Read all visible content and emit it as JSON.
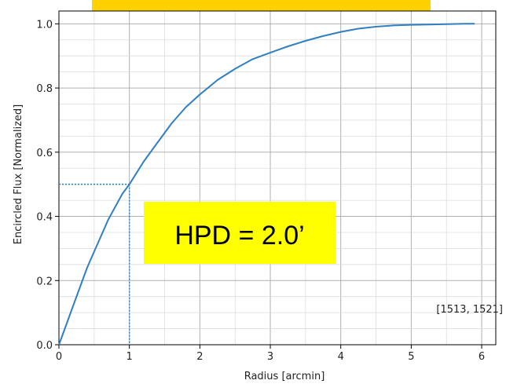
{
  "chart_data": {
    "type": "line",
    "title": "",
    "xlabel": "Radius [arcmin]",
    "ylabel": "Encircled Flux [Normalized]",
    "xlim": [
      0,
      6.2
    ],
    "ylim": [
      0,
      1.04
    ],
    "x_ticks": [
      0,
      1,
      2,
      3,
      4,
      5,
      6
    ],
    "x_tick_labels": [
      "0",
      "1",
      "2",
      "3",
      "4",
      "5",
      "6"
    ],
    "y_ticks": [
      0.0,
      0.2,
      0.4,
      0.6,
      0.8,
      1.0
    ],
    "y_tick_labels": [
      "0.0",
      "0.2",
      "0.4",
      "0.6",
      "0.8",
      "1.0"
    ],
    "grid": true,
    "series": [
      {
        "color": "#2f7fc1",
        "x": [
          0,
          0.1,
          0.2,
          0.3,
          0.4,
          0.5,
          0.6,
          0.7,
          0.8,
          0.9,
          1.0,
          1.2,
          1.4,
          1.6,
          1.8,
          2.0,
          2.25,
          2.5,
          2.75,
          3.0,
          3.25,
          3.5,
          3.75,
          4.0,
          4.25,
          4.5,
          4.75,
          5.0,
          5.25,
          5.5,
          5.75,
          5.9
        ],
        "y": [
          0.0,
          0.06,
          0.12,
          0.18,
          0.24,
          0.29,
          0.34,
          0.39,
          0.43,
          0.47,
          0.5,
          0.57,
          0.63,
          0.69,
          0.74,
          0.78,
          0.825,
          0.86,
          0.89,
          0.91,
          0.93,
          0.947,
          0.962,
          0.975,
          0.985,
          0.991,
          0.995,
          0.997,
          0.998,
          0.999,
          1.0,
          1.0
        ]
      }
    ],
    "reference_lines": [
      {
        "style": "dotted",
        "color": "#2f7fc1",
        "from": [
          0,
          0.5
        ],
        "to": [
          1,
          0.5
        ]
      },
      {
        "style": "dotted",
        "color": "#2f7fc1",
        "from": [
          1,
          0.5
        ],
        "to": [
          1,
          0
        ]
      }
    ],
    "annotations": [
      {
        "text": "HPD = 2.0’",
        "box_color": "#ffff00"
      },
      {
        "text": "[1513, 1521]"
      }
    ],
    "top_banner": {
      "color": "#ffd100"
    }
  }
}
